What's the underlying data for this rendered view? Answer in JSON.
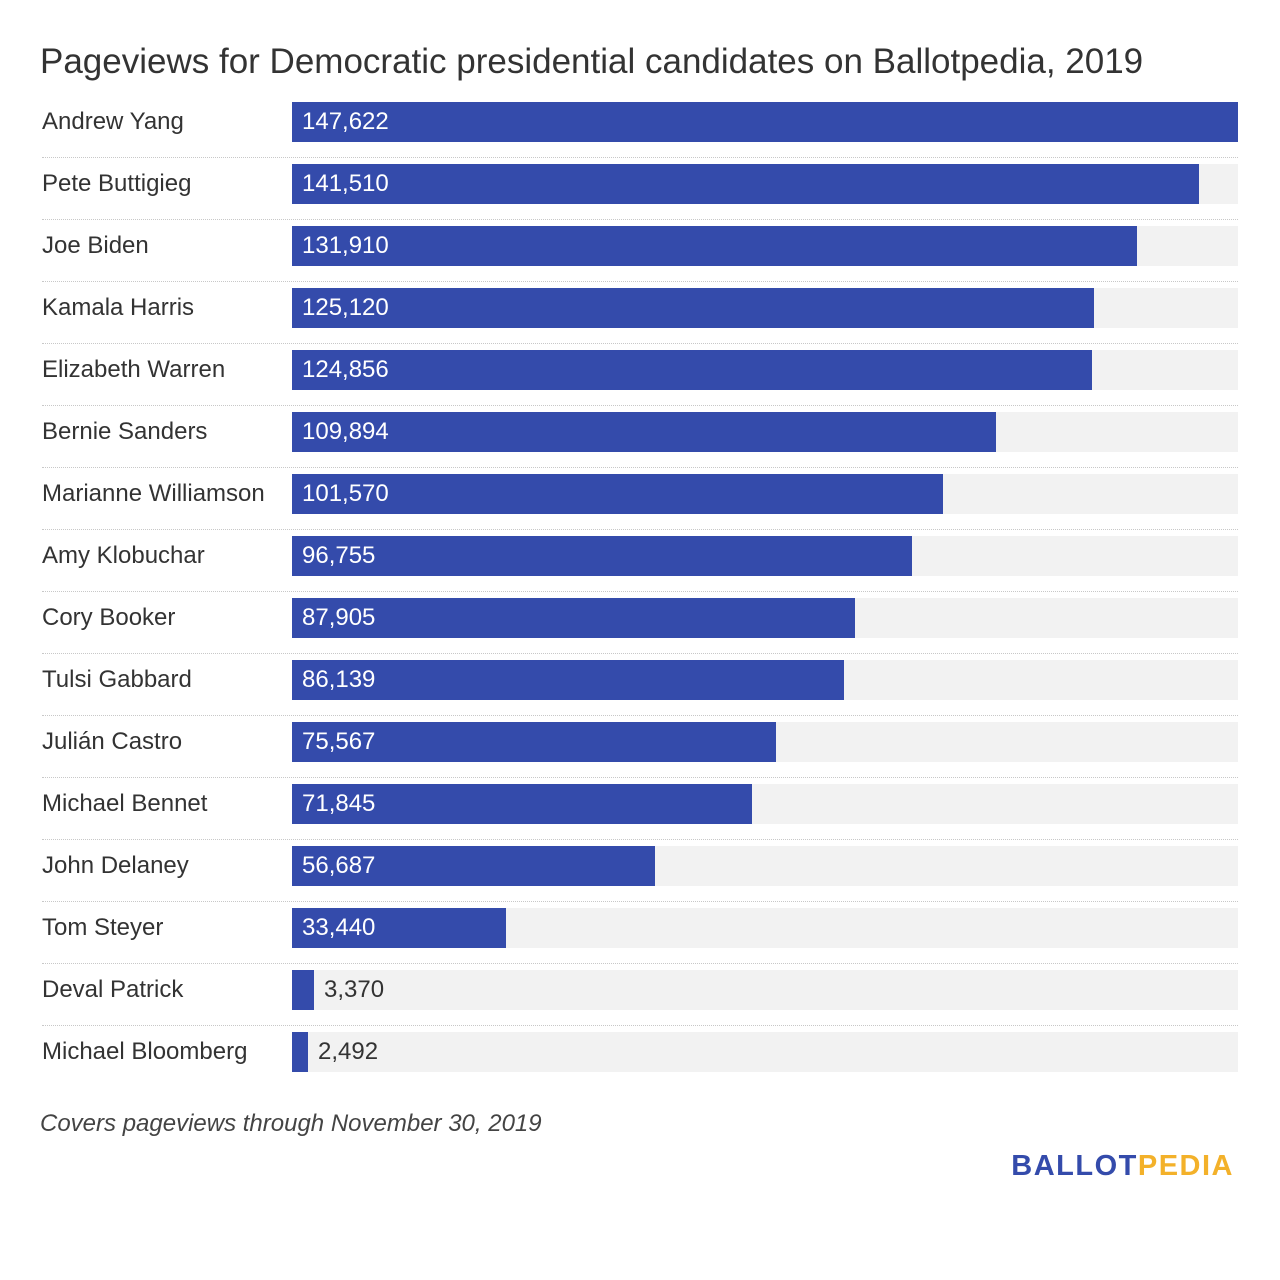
{
  "chart_data": {
    "type": "bar",
    "orientation": "horizontal",
    "title": "Pageviews for Democratic presidential candidates on Ballotpedia, 2019",
    "categories": [
      "Andrew Yang",
      "Pete Buttigieg",
      "Joe Biden",
      "Kamala Harris",
      "Elizabeth Warren",
      "Bernie Sanders",
      "Marianne Williamson",
      "Amy Klobuchar",
      "Cory Booker",
      "Tulsi Gabbard",
      "Julián Castro",
      "Michael Bennet",
      "John Delaney",
      "Tom Steyer",
      "Deval Patrick",
      "Michael Bloomberg"
    ],
    "values": [
      147622,
      141510,
      131910,
      125120,
      124856,
      109894,
      101570,
      96755,
      87905,
      86139,
      75567,
      71845,
      56687,
      33440,
      3370,
      2492
    ],
    "value_labels": [
      "147,622",
      "141,510",
      "131,910",
      "125,120",
      "124,856",
      "109,894",
      "101,570",
      "96,755",
      "87,905",
      "86,139",
      "75,567",
      "71,845",
      "56,687",
      "33,440",
      "3,370",
      "2,492"
    ],
    "xlim": [
      0,
      147622
    ],
    "xlabel": "",
    "ylabel": "",
    "grid": false,
    "legend": "none"
  },
  "footnote": "Covers pageviews through November 30, 2019",
  "logo": {
    "part1": "BALLOT",
    "part2": "PEDIA"
  },
  "colors": {
    "bar": "#344bab",
    "track": "#f2f2f2",
    "label_inside": "#ffffff",
    "label_outside": "#333333",
    "logo_part1": "#344bab",
    "logo_part2": "#f3b12a"
  }
}
